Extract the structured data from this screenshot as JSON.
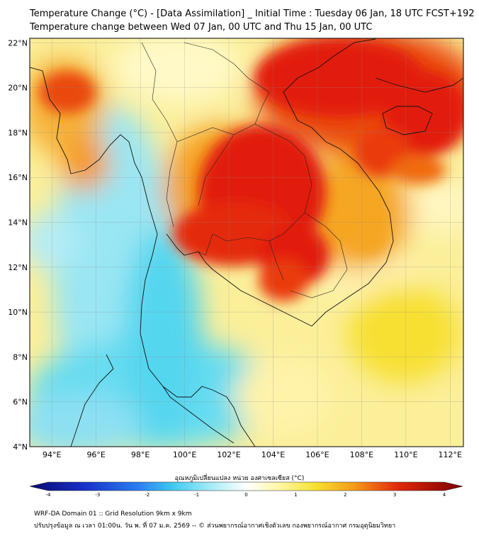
{
  "title_line1": "Temperature Change (°C) - [Data Assimilation] _ Initial Time : Tuesday 06 Jan, 18 UTC FCST+192",
  "title_line2": "Temperature change between Wed 07 Jan, 00 UTC and Thu 15 Jan, 00 UTC",
  "lat_labels": [
    "4°N",
    "6°N",
    "8°N",
    "10°N",
    "12°N",
    "14°N",
    "16°N",
    "18°N",
    "20°N",
    "22°N"
  ],
  "lon_labels": [
    "94°E",
    "96°E",
    "98°E",
    "100°E",
    "102°E",
    "104°E",
    "106°E",
    "108°E",
    "110°E",
    "112°E"
  ],
  "colorbar": {
    "title": "อุณหภูมิเปลี่ยนแปลง หน่วย องศาเซลเซียส (°C)",
    "ticks": [
      "-4",
      "-3",
      "-2",
      "-1",
      "0",
      "1",
      "2",
      "3",
      "4"
    ]
  },
  "footer_line1": "WRF-DA Domain 01 :: Grid Resolution 9km x 9km",
  "footer_line2": "ปรับปรุงข้อมูล ณ เวลา 01:00น. วัน พ. ที่ 07 ม.ค. 2569 -- © ส่วนพยากรณ์อากาศเชิงตัวเลข กองพยากรณ์อากาศ กรมอุตุนิยมวิทยา",
  "colors": {
    "hot": "#e21a0a",
    "warm": "#f7e030",
    "cool": "#4ad8ee",
    "neutral": "#ffffff"
  }
}
